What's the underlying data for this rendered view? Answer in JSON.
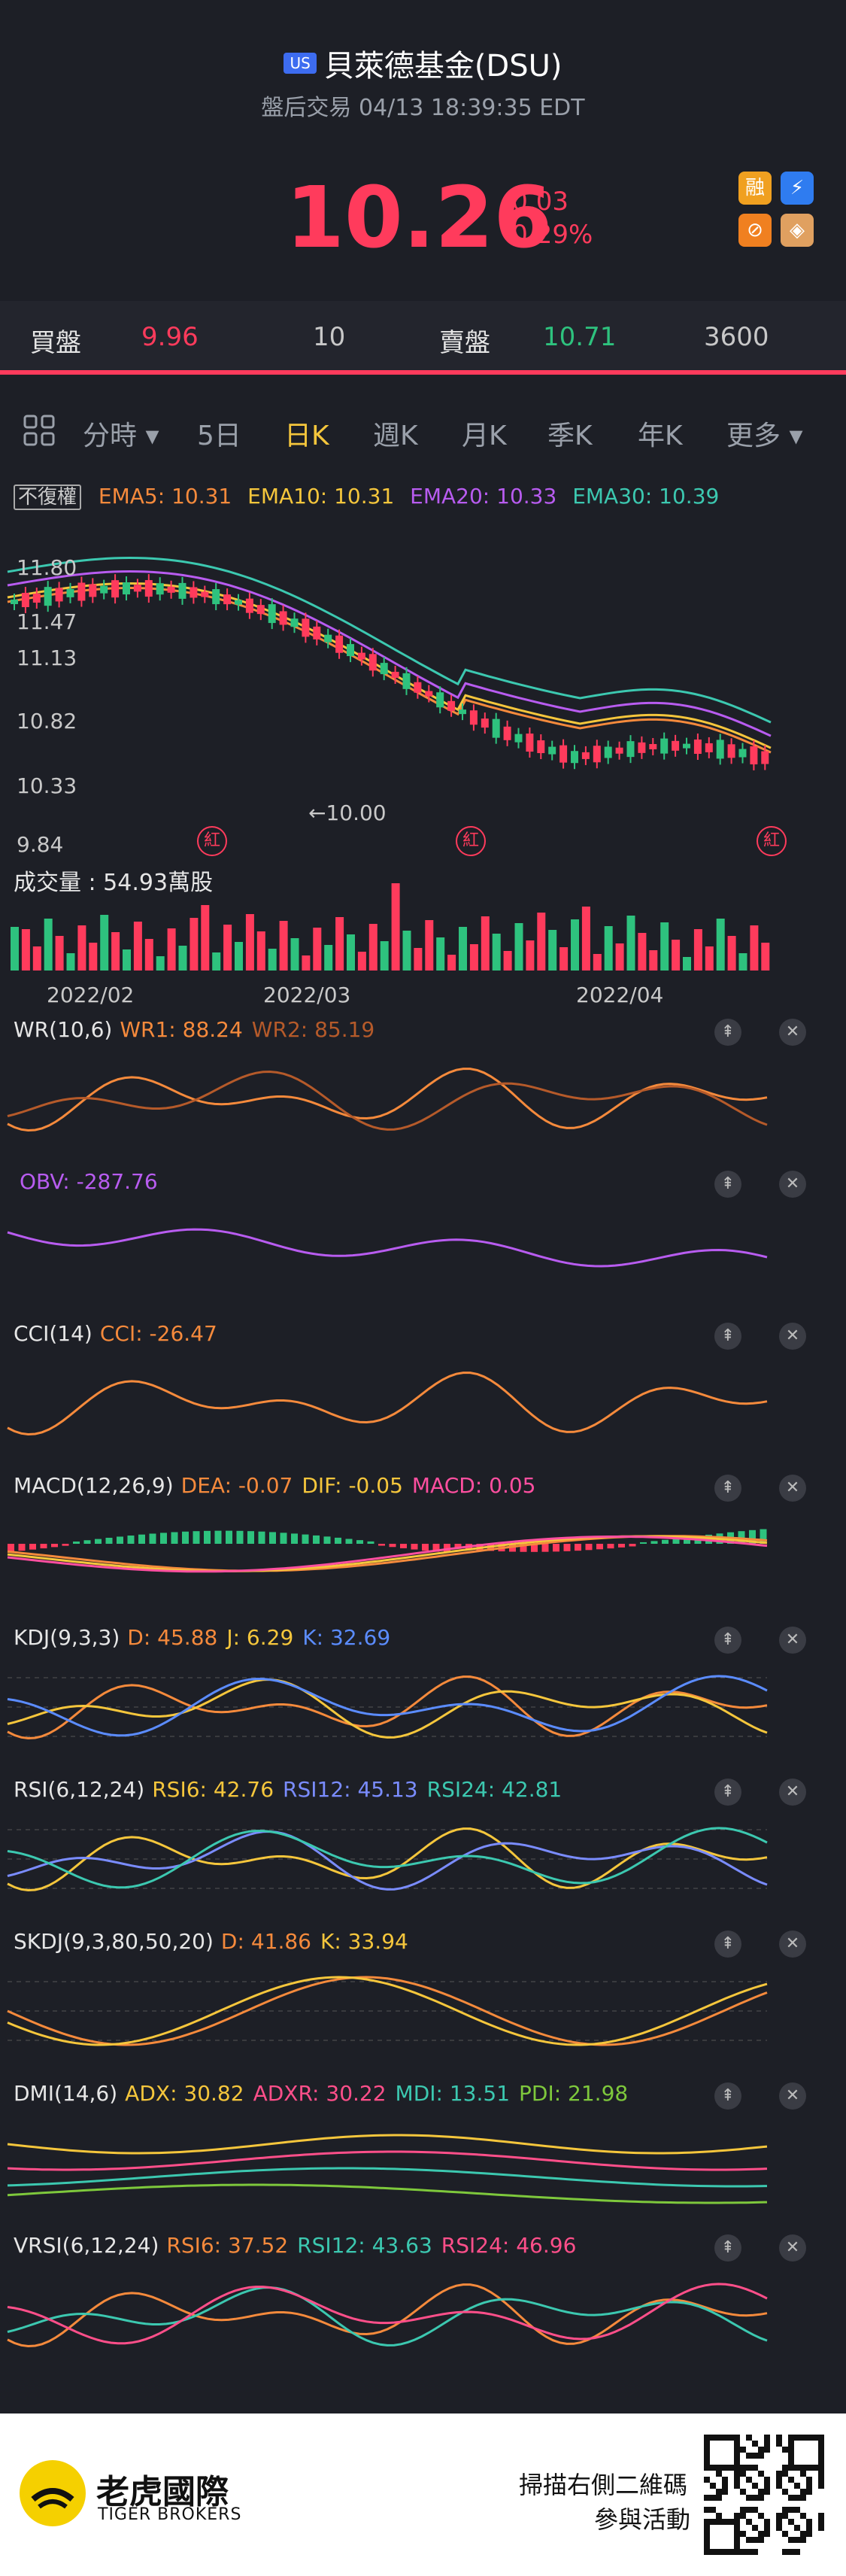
{
  "header": {
    "market_badge": "US",
    "title": "貝萊德基金(DSU)",
    "subtitle": "盤后交易 04/13 18:39:35 EDT",
    "price": "10.26",
    "change": "-0.03",
    "change_pct": "-0.29%",
    "icons": [
      {
        "name": "margin-icon",
        "glyph": "融",
        "color": "#f0a020"
      },
      {
        "name": "lightning-icon",
        "glyph": "⚡",
        "color": "#2f7cf0"
      },
      {
        "name": "options-icon",
        "glyph": "⊘",
        "color": "#f08020"
      },
      {
        "name": "education-icon",
        "glyph": "◈",
        "color": "#e0a060"
      }
    ]
  },
  "orderbook": {
    "bid_label": "買盤",
    "bid_price": "9.96",
    "bid_size": "10",
    "ask_label": "賣盤",
    "ask_price": "10.71",
    "ask_size": "3600"
  },
  "tabs": {
    "items": [
      "分時 ▾",
      "5日",
      "日K",
      "週K",
      "月K",
      "季K",
      "年K",
      "更多 ▾"
    ],
    "active_index": 2
  },
  "kline": {
    "adjust_label": "不復權",
    "ema_labels": [
      {
        "text": "EMA5: 10.31",
        "color": "#f58a3c"
      },
      {
        "text": "EMA10: 10.31",
        "color": "#f5c63c"
      },
      {
        "text": "EMA20: 10.33",
        "color": "#b85cf0"
      },
      {
        "text": "EMA30: 10.39",
        "color": "#3cc8b0"
      }
    ],
    "y_ticks": [
      "11.80",
      "11.47",
      "11.13",
      "10.82",
      "10.33",
      "9.84"
    ],
    "low_marker": "←10.00",
    "volume_label": "成交量 : 54.93萬股",
    "x_ticks": [
      "2022/02",
      "2022/03",
      "2022/04"
    ],
    "dividend_marker": "紅"
  },
  "indicators": [
    {
      "id": "wr",
      "title": "WR(10,6)",
      "values": [
        {
          "text": "WR1: 88.24",
          "color": "#f58a3c"
        },
        {
          "text": "WR2: 85.19",
          "color": "#b55a2a"
        }
      ]
    },
    {
      "id": "obv",
      "title": "",
      "values": [
        {
          "text": "OBV: -287.76",
          "color": "#b85cf0"
        }
      ]
    },
    {
      "id": "cci",
      "title": "CCI(14)",
      "values": [
        {
          "text": "CCI: -26.47",
          "color": "#f58a3c"
        }
      ]
    },
    {
      "id": "macd",
      "title": "MACD(12,26,9)",
      "values": [
        {
          "text": "DEA: -0.07",
          "color": "#f58a3c"
        },
        {
          "text": "DIF: -0.05",
          "color": "#f5c63c"
        },
        {
          "text": "MACD: 0.05",
          "color": "#ff4fa0"
        }
      ]
    },
    {
      "id": "kdj",
      "title": "KDJ(9,3,3)",
      "values": [
        {
          "text": "D: 45.88",
          "color": "#f58a3c"
        },
        {
          "text": "J: 6.29",
          "color": "#f5c63c"
        },
        {
          "text": "K: 32.69",
          "color": "#5b8cff"
        }
      ]
    },
    {
      "id": "rsi",
      "title": "RSI(6,12,24)",
      "values": [
        {
          "text": "RSI6: 42.76",
          "color": "#f5c63c"
        },
        {
          "text": "RSI12: 45.13",
          "color": "#7a8cff"
        },
        {
          "text": "RSI24: 42.81",
          "color": "#3cc8b0"
        }
      ]
    },
    {
      "id": "skdj",
      "title": "SKDJ(9,3,80,50,20)",
      "values": [
        {
          "text": "D: 41.86",
          "color": "#f58a3c"
        },
        {
          "text": "K: 33.94",
          "color": "#f5c63c"
        }
      ]
    },
    {
      "id": "dmi",
      "title": "DMI(14,6)",
      "values": [
        {
          "text": "ADX: 30.82",
          "color": "#f5c63c"
        },
        {
          "text": "ADXR: 30.22",
          "color": "#ff4f8a"
        },
        {
          "text": "MDI: 13.51",
          "color": "#3cc8b0"
        },
        {
          "text": "PDI: 21.98",
          "color": "#7ec83c"
        }
      ]
    },
    {
      "id": "vrsi",
      "title": "VRSI(6,12,24)",
      "values": [
        {
          "text": "RSI6: 37.52",
          "color": "#f58a3c"
        },
        {
          "text": "RSI12: 43.63",
          "color": "#3cc8b0"
        },
        {
          "text": "RSI24: 46.96",
          "color": "#ff4f8a"
        }
      ]
    }
  ],
  "footer": {
    "brand_name": "老虎國際",
    "brand_sub": "TIGER BROKERS",
    "cta_line1": "掃描右側二維碼",
    "cta_line2": "參與活動"
  },
  "colors": {
    "up": "#ff3b5c",
    "down": "#2ec27e",
    "bg": "#1d1f26"
  }
}
